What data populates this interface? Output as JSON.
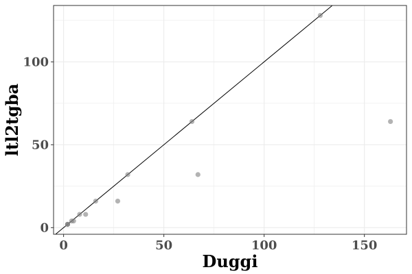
{
  "chart_data": {
    "type": "scatter",
    "xlabel": "Duggi",
    "ylabel": "ltl2tgba",
    "xlim": [
      -5,
      171
    ],
    "ylim": [
      -4,
      134
    ],
    "x_ticks": [
      "0",
      "50",
      "100",
      "150"
    ],
    "y_ticks": [
      "0",
      "50",
      "100"
    ],
    "x_tick_values": [
      0,
      50,
      100,
      150
    ],
    "y_tick_values": [
      0,
      50,
      100
    ],
    "grid": true,
    "reference_line": "y = x",
    "points": [
      {
        "x": 2,
        "y": 2
      },
      {
        "x": 2,
        "y": 2
      },
      {
        "x": 2,
        "y": 2
      },
      {
        "x": 4,
        "y": 4
      },
      {
        "x": 5,
        "y": 4
      },
      {
        "x": 8,
        "y": 8
      },
      {
        "x": 11,
        "y": 8
      },
      {
        "x": 16,
        "y": 16
      },
      {
        "x": 27,
        "y": 16
      },
      {
        "x": 32,
        "y": 32
      },
      {
        "x": 64,
        "y": 64
      },
      {
        "x": 67,
        "y": 32
      },
      {
        "x": 128,
        "y": 128
      },
      {
        "x": 163,
        "y": 64
      }
    ],
    "colors": {
      "point": "#808080",
      "line": "#000000",
      "grid": "#ebebeb",
      "panel_border": "#333333"
    }
  }
}
